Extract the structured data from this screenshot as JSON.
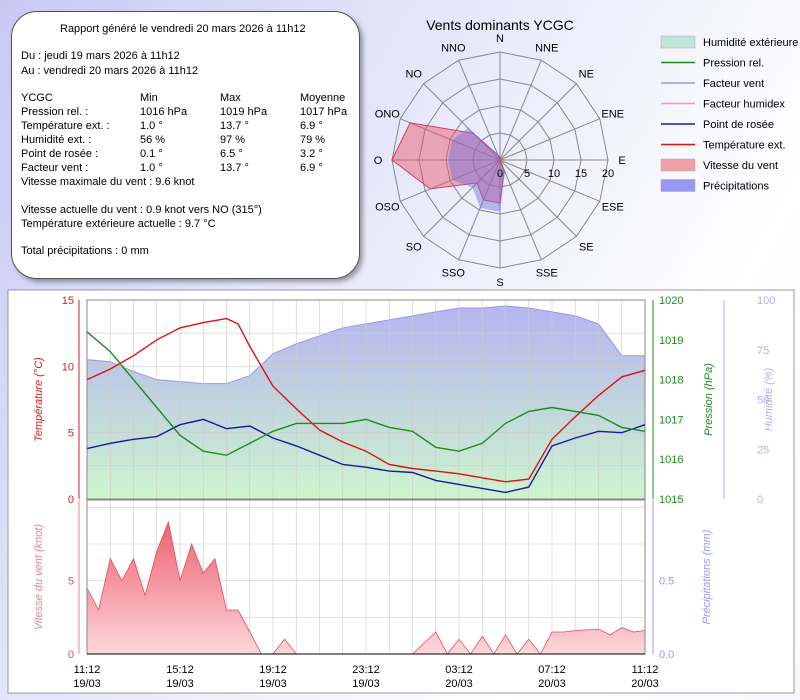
{
  "report": {
    "title": "Rapport généré le vendredi 20 mars 2026 à 11h12",
    "du": "Du : jeudi 19 mars 2026 à 11h12",
    "au": "Au : vendredi 20 mars 2026 à 11h12",
    "table_header": [
      "YCGC",
      "Min",
      "Max",
      "Moyenne"
    ],
    "rows": [
      [
        "Pression rel. :",
        "1016 hPa",
        "1019 hPa",
        "1017 hPa"
      ],
      [
        "Température ext. :",
        "1.0 °",
        "13.7 °",
        "6.9 °"
      ],
      [
        "Humidité ext. :",
        "56 %",
        "97 %",
        "79 %"
      ],
      [
        "Point de rosée :",
        "0.1 °",
        "6.5 °",
        "3.2 °"
      ],
      [
        "Facteur vent :",
        "1.0 °",
        "13.7 °",
        "6.9 °"
      ]
    ],
    "max_wind": "Vitesse maximale du vent : 9.6 knot",
    "current_wind": "Vitesse actuelle du vent :  0.9 knot vers  NO (315°)",
    "current_temp": "Température extérieure actuelle :  9.7 °C",
    "total_precip": "Total précipitations :  0 mm"
  },
  "legend": [
    {
      "label": "Humidité extérieure",
      "color": "#c0e4d8",
      "kind": "area"
    },
    {
      "label": "Pression rel.",
      "color": "#1e8c1e",
      "kind": "line"
    },
    {
      "label": "Facteur vent",
      "color": "#9a9ae0",
      "kind": "line"
    },
    {
      "label": "Facteur humidex",
      "color": "#f0a0a0",
      "kind": "line"
    },
    {
      "label": "Point de rosée",
      "color": "#1a1aa0",
      "kind": "line"
    },
    {
      "label": "Température ext.",
      "color": "#e01010",
      "kind": "line"
    },
    {
      "label": "Vitesse du vent",
      "color": "#f0a0a8",
      "kind": "area"
    },
    {
      "label": "Précipitations",
      "color": "#9898f0",
      "kind": "area"
    }
  ],
  "chart_data": [
    {
      "type": "radar",
      "title": "Vents dominants YCGC",
      "directions": [
        "N",
        "NNE",
        "NE",
        "ENE",
        "E",
        "ESE",
        "SE",
        "SSE",
        "S",
        "SSO",
        "SO",
        "OSO",
        "O",
        "ONO",
        "NO",
        "NNO"
      ],
      "rticks": [
        "0",
        "5",
        "10",
        "15",
        "20"
      ],
      "rmax": 20,
      "values": [
        0.5,
        0,
        0,
        0,
        0,
        0,
        0,
        2,
        8,
        8,
        6,
        14,
        20,
        18,
        7,
        1
      ]
    },
    {
      "type": "line",
      "x_tick_labels": [
        "11:12",
        "15:12",
        "19:12",
        "23:12",
        "03:12",
        "07:12",
        "11:12"
      ],
      "x_date_labels": [
        "19/03",
        "19/03",
        "19/03",
        "19/03",
        "20/03",
        "20/03",
        "20/03"
      ],
      "hours_span": 24,
      "left_axis": {
        "label": "Température (°C)",
        "min": 0,
        "max": 15,
        "ticks": [
          "0",
          "5",
          "10",
          "15"
        ]
      },
      "right_axis_1": {
        "label": "Pression (hPa)",
        "min": 1015,
        "max": 1020,
        "ticks": [
          "1015",
          "1016",
          "1017",
          "1018",
          "1019",
          "1020"
        ]
      },
      "right_axis_2": {
        "label": "Humidité (%)",
        "min": 0,
        "max": 100,
        "ticks": [
          "0",
          "25",
          "50",
          "75",
          "100"
        ]
      },
      "series": [
        {
          "name": "Température ext.",
          "color": "#e01010",
          "axis": "left",
          "points": [
            [
              0,
              9
            ],
            [
              1,
              9.8
            ],
            [
              2,
              10.8
            ],
            [
              3,
              12
            ],
            [
              4,
              12.9
            ],
            [
              5,
              13.3
            ],
            [
              6,
              13.6
            ],
            [
              6.5,
              13.2
            ],
            [
              7,
              11.5
            ],
            [
              8,
              8.5
            ],
            [
              9,
              6.8
            ],
            [
              10,
              5.2
            ],
            [
              11,
              4.3
            ],
            [
              12,
              3.6
            ],
            [
              13,
              2.6
            ],
            [
              14,
              2.3
            ],
            [
              15,
              2.1
            ],
            [
              16,
              1.9
            ],
            [
              17,
              1.6
            ],
            [
              18,
              1.3
            ],
            [
              19,
              1.5
            ],
            [
              20,
              4.5
            ],
            [
              21,
              6.2
            ],
            [
              22,
              7.8
            ],
            [
              23,
              9.2
            ],
            [
              24,
              9.7
            ]
          ]
        },
        {
          "name": "Point de rosée",
          "color": "#1a1aa0",
          "axis": "left",
          "points": [
            [
              0,
              3.8
            ],
            [
              1,
              4.2
            ],
            [
              2,
              4.5
            ],
            [
              3,
              4.7
            ],
            [
              4,
              5.6
            ],
            [
              5,
              6
            ],
            [
              6,
              5.3
            ],
            [
              7,
              5.5
            ],
            [
              8,
              4.6
            ],
            [
              9,
              4
            ],
            [
              10,
              3.3
            ],
            [
              11,
              2.6
            ],
            [
              12,
              2.4
            ],
            [
              13,
              2.1
            ],
            [
              14,
              2
            ],
            [
              15,
              1.4
            ],
            [
              16,
              1.1
            ],
            [
              17,
              0.8
            ],
            [
              18,
              0.5
            ],
            [
              19,
              0.9
            ],
            [
              20,
              4
            ],
            [
              21,
              4.6
            ],
            [
              22,
              5.1
            ],
            [
              23,
              5
            ],
            [
              24,
              5.6
            ]
          ]
        },
        {
          "name": "Pression rel.",
          "color": "#1e8c1e",
          "axis": "right1",
          "points": [
            [
              0,
              1019.2
            ],
            [
              1,
              1018.7
            ],
            [
              2,
              1018
            ],
            [
              3,
              1017.3
            ],
            [
              4,
              1016.6
            ],
            [
              5,
              1016.2
            ],
            [
              6,
              1016.1
            ],
            [
              7,
              1016.4
            ],
            [
              8,
              1016.7
            ],
            [
              9,
              1016.9
            ],
            [
              10,
              1016.9
            ],
            [
              11,
              1016.9
            ],
            [
              12,
              1017
            ],
            [
              13,
              1016.8
            ],
            [
              14,
              1016.7
            ],
            [
              15,
              1016.3
            ],
            [
              16,
              1016.2
            ],
            [
              17,
              1016.4
            ],
            [
              18,
              1016.9
            ],
            [
              19,
              1017.2
            ],
            [
              20,
              1017.3
            ],
            [
              21,
              1017.2
            ],
            [
              22,
              1017.1
            ],
            [
              23,
              1016.8
            ],
            [
              24,
              1016.7
            ]
          ]
        },
        {
          "name": "Humidité extérieure",
          "color": "#c0e4d8",
          "axis": "right2",
          "points": [
            [
              0,
              70
            ],
            [
              1,
              69
            ],
            [
              2,
              64
            ],
            [
              3,
              60
            ],
            [
              4,
              59
            ],
            [
              5,
              58
            ],
            [
              6,
              58
            ],
            [
              7,
              62
            ],
            [
              8,
              73
            ],
            [
              9,
              78
            ],
            [
              10,
              82
            ],
            [
              11,
              86
            ],
            [
              12,
              88
            ],
            [
              13,
              90
            ],
            [
              14,
              92
            ],
            [
              15,
              94
            ],
            [
              16,
              96
            ],
            [
              17,
              96
            ],
            [
              18,
              97
            ],
            [
              19,
              96
            ],
            [
              20,
              94
            ],
            [
              21,
              92
            ],
            [
              22,
              88
            ],
            [
              23,
              72
            ],
            [
              24,
              72
            ]
          ]
        }
      ]
    },
    {
      "type": "area",
      "left_axis": {
        "label": "Vitesse du vent (knot)",
        "min": 0,
        "max": 10.5,
        "ticks": [
          "0",
          "5"
        ]
      },
      "right_axis": {
        "label": "Précipitations (mm)",
        "min": 0,
        "max": 1.05,
        "ticks": [
          "0.0",
          "0.5"
        ]
      },
      "series": [
        {
          "name": "Vitesse du vent",
          "color": "#f0a0a8",
          "points": [
            [
              0,
              4.5
            ],
            [
              0.5,
              3
            ],
            [
              1,
              6.5
            ],
            [
              1.5,
              5
            ],
            [
              2,
              6.5
            ],
            [
              2.5,
              4
            ],
            [
              3,
              7
            ],
            [
              3.5,
              9
            ],
            [
              4,
              5
            ],
            [
              4.5,
              7.5
            ],
            [
              5,
              5.5
            ],
            [
              5.5,
              6.5
            ],
            [
              6,
              3
            ],
            [
              6.5,
              3
            ],
            [
              7,
              1.5
            ],
            [
              7.5,
              0
            ],
            [
              8,
              0
            ],
            [
              8.5,
              1
            ],
            [
              9,
              0
            ],
            [
              10,
              0
            ],
            [
              11,
              0
            ],
            [
              12,
              0
            ],
            [
              13,
              0
            ],
            [
              14,
              0
            ],
            [
              15,
              1.5
            ],
            [
              15.5,
              0
            ],
            [
              16,
              1
            ],
            [
              16.5,
              0
            ],
            [
              17,
              1.2
            ],
            [
              17.5,
              0
            ],
            [
              18,
              1.3
            ],
            [
              18.5,
              0
            ],
            [
              19,
              1
            ],
            [
              19.5,
              0
            ],
            [
              20,
              1.5
            ],
            [
              20.5,
              1.5
            ],
            [
              21,
              1.6
            ],
            [
              22,
              1.7
            ],
            [
              22.5,
              1.3
            ],
            [
              23,
              1.8
            ],
            [
              23.5,
              1.5
            ],
            [
              24,
              1.6
            ]
          ]
        },
        {
          "name": "Précipitations",
          "color": "#9898f0",
          "points": [
            [
              0,
              0
            ],
            [
              24,
              0
            ]
          ]
        }
      ]
    }
  ]
}
